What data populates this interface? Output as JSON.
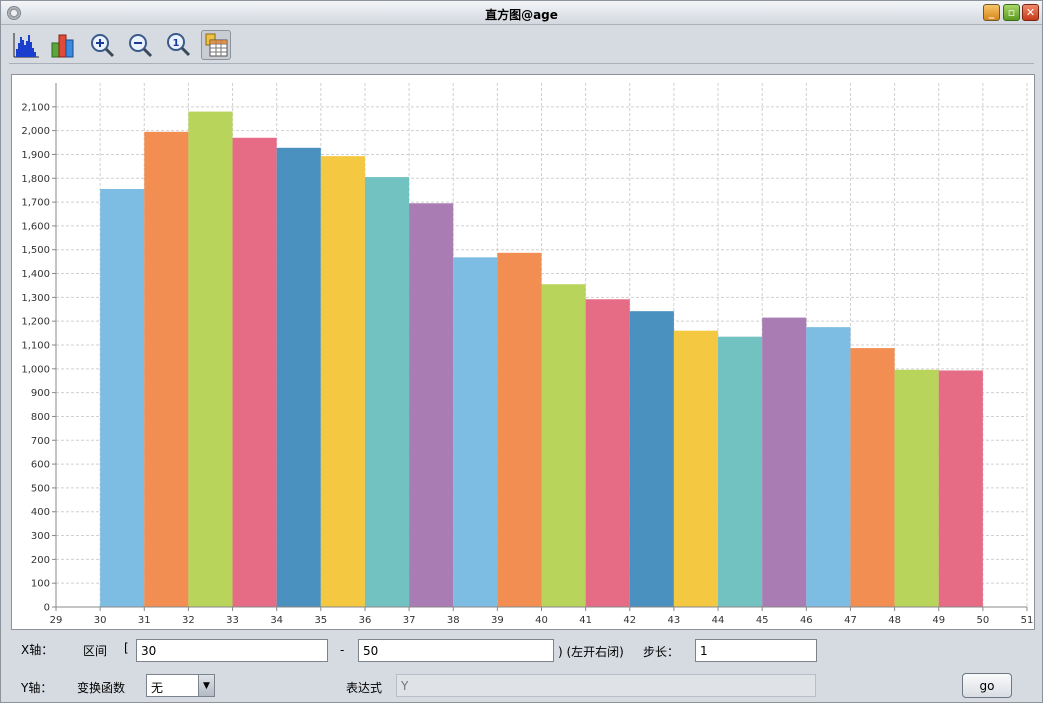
{
  "window": {
    "title": "直方图@age"
  },
  "toolbar": {
    "tools": [
      {
        "name": "histogram-icon",
        "selected": false
      },
      {
        "name": "bar-chart-icon",
        "selected": false
      },
      {
        "name": "zoom-in-icon",
        "selected": false
      },
      {
        "name": "zoom-out-icon",
        "selected": false
      },
      {
        "name": "zoom-reset-icon",
        "selected": false
      },
      {
        "name": "data-table-icon",
        "selected": true
      }
    ]
  },
  "chart_data": {
    "type": "bar",
    "title": "",
    "xlabel": "",
    "ylabel": "",
    "x_ticks": [
      29,
      30,
      31,
      32,
      33,
      34,
      35,
      36,
      37,
      38,
      39,
      40,
      41,
      42,
      43,
      44,
      45,
      46,
      47,
      48,
      49,
      50,
      51
    ],
    "y_ticks": [
      "0",
      "100",
      "200",
      "300",
      "400",
      "500",
      "600",
      "700",
      "800",
      "900",
      "1,000",
      "1,100",
      "1,200",
      "1,300",
      "1,400",
      "1,500",
      "1,600",
      "1,700",
      "1,800",
      "1,900",
      "2,000",
      "2,100"
    ],
    "xlim": [
      29,
      51
    ],
    "ylim": [
      0,
      2200
    ],
    "grid": true,
    "bins": [
      {
        "start": 30,
        "end": 31,
        "value": 1755
      },
      {
        "start": 31,
        "end": 32,
        "value": 1995
      },
      {
        "start": 32,
        "end": 33,
        "value": 2080
      },
      {
        "start": 33,
        "end": 34,
        "value": 1970
      },
      {
        "start": 34,
        "end": 35,
        "value": 1928
      },
      {
        "start": 35,
        "end": 36,
        "value": 1893
      },
      {
        "start": 36,
        "end": 37,
        "value": 1805
      },
      {
        "start": 37,
        "end": 38,
        "value": 1695
      },
      {
        "start": 38,
        "end": 39,
        "value": 1468
      },
      {
        "start": 39,
        "end": 40,
        "value": 1487
      },
      {
        "start": 40,
        "end": 41,
        "value": 1355
      },
      {
        "start": 41,
        "end": 42,
        "value": 1292
      },
      {
        "start": 42,
        "end": 43,
        "value": 1242
      },
      {
        "start": 43,
        "end": 44,
        "value": 1160
      },
      {
        "start": 44,
        "end": 45,
        "value": 1135
      },
      {
        "start": 45,
        "end": 46,
        "value": 1215
      },
      {
        "start": 46,
        "end": 47,
        "value": 1175
      },
      {
        "start": 47,
        "end": 48,
        "value": 1087
      },
      {
        "start": 48,
        "end": 49,
        "value": 996
      },
      {
        "start": 49,
        "end": 50,
        "value": 993
      }
    ],
    "palette": [
      "#7dbde3",
      "#f28e52",
      "#b8d45a",
      "#e66b85",
      "#4a91c0",
      "#f5c842",
      "#72c2c2",
      "#a97cb3"
    ]
  },
  "form": {
    "x_axis_label": "X轴：",
    "range_label": "区间",
    "range_open_bracket": "[",
    "range_start": "30",
    "range_dash": "-",
    "range_end": "50",
    "range_close_note": ") (左开右闭)",
    "step_label": "步长：",
    "step_value": "1",
    "y_axis_label": "Y轴：",
    "transform_label": "变换函数",
    "transform_value": "无",
    "expression_label": "表达式",
    "expression_placeholder": "Y",
    "go_label": "go"
  }
}
